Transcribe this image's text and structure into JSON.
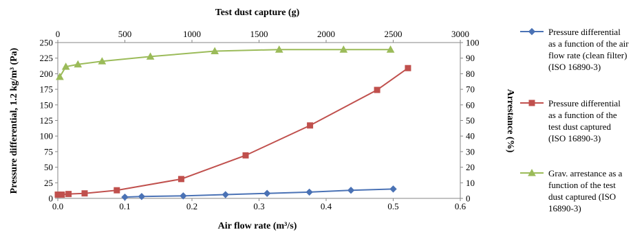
{
  "chart_data": {
    "type": "line",
    "x_bottom": {
      "label": "Air flow rate (m³/s)",
      "range": [
        0,
        0.6
      ],
      "ticks": [
        "0.0",
        "0.1",
        "0.2",
        "0.3",
        "0.4",
        "0.5",
        "0.6"
      ]
    },
    "x_top": {
      "label": "Test dust capture  (g)",
      "range": [
        0,
        3000
      ],
      "ticks": [
        "0",
        "500",
        "1000",
        "1500",
        "2000",
        "2500",
        "3000"
      ]
    },
    "y_left": {
      "label": "Pressure differential, 1.2 kg/m³ (Pa)",
      "range": [
        0,
        250
      ],
      "ticks": [
        "0",
        "25",
        "50",
        "75",
        "100",
        "125",
        "150",
        "175",
        "200",
        "225",
        "250"
      ]
    },
    "y_right": {
      "label": "Arrestance (%)",
      "range": [
        0,
        100
      ],
      "ticks": [
        "0",
        "10",
        "20",
        "30",
        "40",
        "50",
        "60",
        "70",
        "80",
        "90",
        "100"
      ]
    },
    "grid": false,
    "legend_position": "right",
    "series": [
      {
        "name": "Pressure differential as a function of the air flow rate (clean filter) (ISO 16890-3)",
        "legend_lines": [
          "Pressure differential",
          "as a function of the air",
          "flow rate (clean filter)",
          "(ISO 16890-3)"
        ],
        "color": "#4a72b5",
        "marker": "diamond",
        "x_axis": "bottom",
        "y_axis": "left",
        "x": [
          0.1,
          0.125,
          0.187,
          0.25,
          0.312,
          0.375,
          0.437,
          0.5
        ],
        "y": [
          2,
          3,
          4,
          6,
          8,
          10,
          13,
          15
        ]
      },
      {
        "name": "Pressure differential as a function of the test dust captured (ISO 16890-3)",
        "legend_lines": [
          "Pressure differential",
          "as a function of the",
          "test dust captured",
          "(ISO 16890-3)"
        ],
        "color": "#c0504d",
        "marker": "square",
        "x_axis": "top",
        "y_axis": "left",
        "x": [
          0,
          30,
          80,
          200,
          440,
          920,
          1400,
          1880,
          2380,
          2610
        ],
        "y": [
          6,
          6,
          7,
          8,
          13,
          31,
          69,
          117,
          174,
          209
        ]
      },
      {
        "name": "Grav. arrestance as a function of the test dust captured (ISO 16890-3)",
        "legend_lines": [
          "Grav. arrestance as a",
          "function of the test",
          "dust captured (ISO",
          "16890-3)"
        ],
        "color": "#9bbb59",
        "marker": "triangle",
        "x_axis": "top",
        "y_axis": "right",
        "x": [
          15,
          60,
          150,
          330,
          690,
          1170,
          1650,
          2130,
          2480
        ],
        "y": [
          78,
          84.5,
          86,
          88,
          91,
          94.5,
          95.5,
          95.5,
          95.5
        ]
      }
    ]
  }
}
